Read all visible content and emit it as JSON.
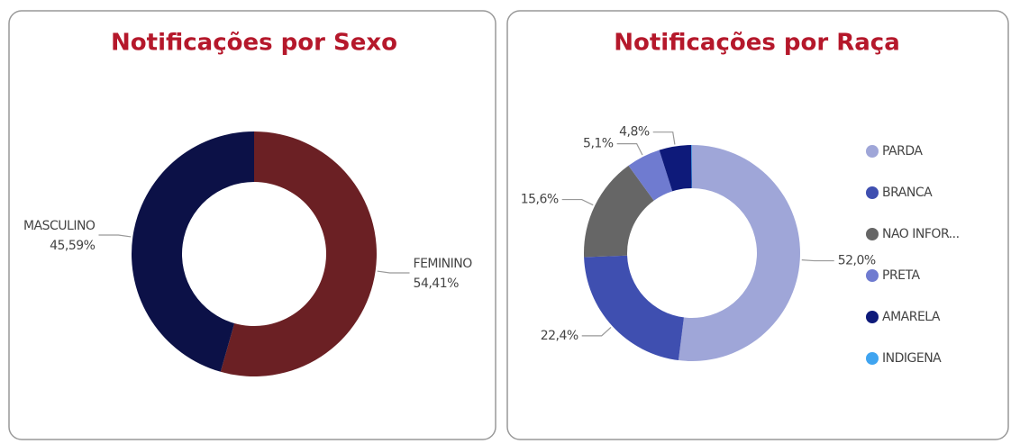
{
  "chart_data": [
    {
      "type": "pie",
      "title": "Notificações por Sexo",
      "categories": [
        "FEMININO",
        "MASCULINO"
      ],
      "values": [
        54.41,
        45.59
      ],
      "value_labels": [
        "54,41%",
        "45,59%"
      ],
      "colors": [
        "#6b2024",
        "#0c1147"
      ],
      "legend": false
    },
    {
      "type": "pie",
      "title": "Notificações por Raça",
      "categories": [
        "PARDA",
        "BRANCA",
        "NAO INFOR...",
        "PRETA",
        "AMARELA",
        "INDIGENA"
      ],
      "values": [
        52.0,
        22.4,
        15.6,
        5.1,
        4.8,
        0.1
      ],
      "value_labels": [
        "52,0%",
        "22,4%",
        "15,6%",
        "5,1%",
        "4,8%",
        null
      ],
      "colors": [
        "#9fa6d8",
        "#3f4fb0",
        "#666666",
        "#6f7bd0",
        "#0e1a7a",
        "#3fa4f0"
      ],
      "legend": "right"
    }
  ]
}
